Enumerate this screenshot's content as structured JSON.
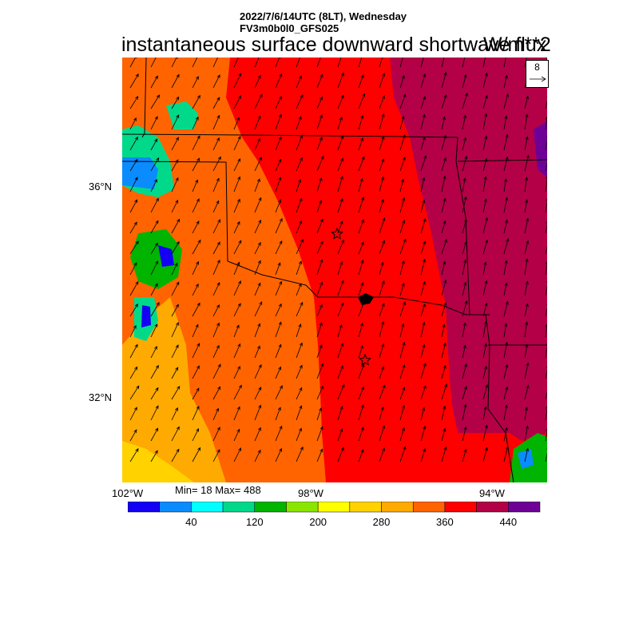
{
  "title": {
    "datetime": "2022/7/6/14UTC (8LT), Wednesday",
    "model": "FV3m0b0l0_GFS025",
    "variable": "instantaneous surface downward shortwave flux",
    "units": "W/m**2"
  },
  "vector_reference": {
    "value": "8"
  },
  "axes": {
    "lat_labels": [
      "36°N",
      "32°N"
    ],
    "lon_labels": [
      "102°W",
      "98°W",
      "94°W"
    ]
  },
  "stats": {
    "text": "Min= 18 Max= 488",
    "min": 18,
    "max": 488
  },
  "colorbar": {
    "colors": [
      "#1400f5",
      "#0a8cff",
      "#00ffff",
      "#00d98a",
      "#00b400",
      "#8ae600",
      "#ffff00",
      "#ffd200",
      "#ffaa00",
      "#ff6400",
      "#ff0000",
      "#b40046",
      "#6e0096"
    ],
    "tick_labels": [
      "40",
      "120",
      "200",
      "280",
      "360",
      "440"
    ]
  },
  "colors": {
    "border": "#000000",
    "marker": "#000000"
  },
  "icons": [
    "star-marker-icon",
    "reference-arrow-icon",
    "wind-arrow-icon"
  ]
}
